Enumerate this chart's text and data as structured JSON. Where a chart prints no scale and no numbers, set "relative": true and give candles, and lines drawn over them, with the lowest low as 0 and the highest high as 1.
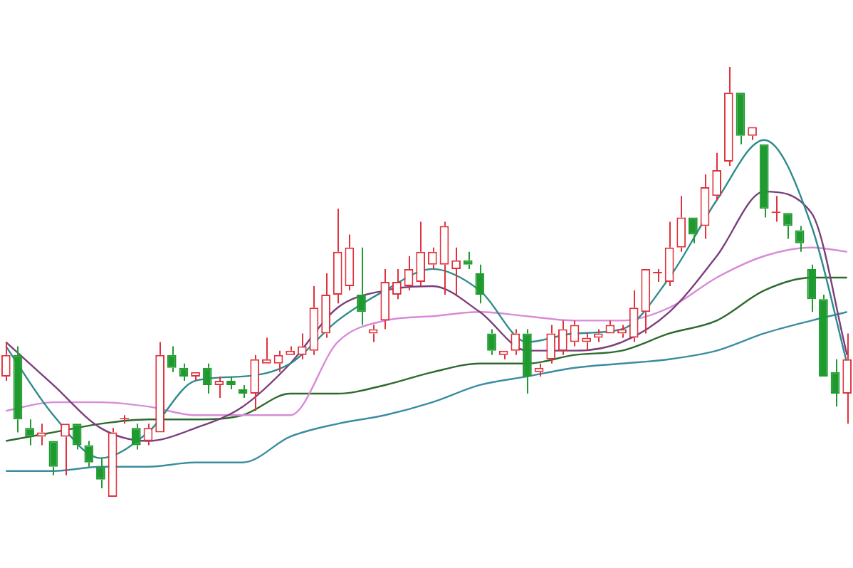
{
  "chart_data": {
    "type": "candlestick",
    "relative": true,
    "legend": false,
    "categories": [
      null,
      null,
      null,
      null,
      null,
      null,
      null,
      null,
      null,
      null,
      null,
      null,
      null,
      null,
      null,
      null,
      null,
      null,
      null,
      null,
      null,
      null,
      null,
      null,
      null,
      null,
      null,
      null,
      null,
      null,
      null,
      null,
      null,
      null,
      null,
      null,
      null,
      null,
      null,
      null,
      null,
      null,
      null,
      null,
      null,
      null,
      null,
      null,
      null,
      null,
      null,
      null,
      null,
      null,
      null,
      null,
      null,
      null,
      null,
      null,
      null,
      null,
      null,
      null,
      null,
      null,
      null,
      null,
      null,
      null,
      null,
      null
    ],
    "ohlc": [
      [
        0.28,
        0.36,
        0.27,
        0.33
      ],
      [
        0.33,
        0.35,
        0.15,
        0.18
      ],
      [
        0.16,
        0.18,
        0.12,
        0.14
      ],
      [
        0.14,
        0.17,
        0.12,
        0.15
      ],
      [
        0.13,
        0.13,
        0.05,
        0.07
      ],
      [
        0.14,
        0.17,
        0.05,
        0.17
      ],
      [
        0.17,
        0.17,
        0.11,
        0.12
      ],
      [
        0.12,
        0.13,
        0.07,
        0.08
      ],
      [
        0.07,
        0.09,
        0.02,
        0.04
      ],
      [
        0,
        0.16,
        0,
        0.15
      ],
      [
        0.18,
        0.19,
        0.17,
        0.18
      ],
      [
        0.16,
        0.17,
        0.11,
        0.12
      ],
      [
        0.13,
        0.17,
        0.12,
        0.16
      ],
      [
        0.15,
        0.36,
        0.15,
        0.33
      ],
      [
        0.33,
        0.35,
        0.29,
        0.3
      ],
      [
        0.3,
        0.31,
        0.27,
        0.28
      ],
      [
        0.28,
        0.29,
        0.27,
        0.29
      ],
      [
        0.3,
        0.31,
        0.24,
        0.26
      ],
      [
        0.26,
        0.28,
        0.23,
        0.27
      ],
      [
        0.27,
        0.28,
        0.25,
        0.26
      ],
      [
        0.25,
        0.26,
        0.23,
        0.24
      ],
      [
        0.24,
        0.33,
        0.2,
        0.32
      ],
      [
        0.31,
        0.37,
        0.31,
        0.32
      ],
      [
        0.31,
        0.34,
        0.29,
        0.33
      ],
      [
        0.33,
        0.35,
        0.33,
        0.34
      ],
      [
        0.33,
        0.38,
        0.32,
        0.35
      ],
      [
        0.34,
        0.49,
        0.33,
        0.44
      ],
      [
        0.38,
        0.52,
        0.37,
        0.47
      ],
      [
        0.47,
        0.67,
        0.45,
        0.57
      ],
      [
        0.49,
        0.61,
        0.48,
        0.58
      ],
      [
        0.47,
        0.58,
        0.4,
        0.43
      ],
      [
        0.38,
        0.4,
        0.36,
        0.39
      ],
      [
        0.41,
        0.53,
        0.39,
        0.5
      ],
      [
        0.47,
        0.53,
        0.46,
        0.5
      ],
      [
        0.49,
        0.56,
        0.48,
        0.53
      ],
      [
        0.5,
        0.64,
        0.49,
        0.57
      ],
      [
        0.54,
        0.58,
        0.53,
        0.57
      ],
      [
        0.54,
        0.64,
        0.47,
        0.63
      ],
      [
        0.53,
        0.58,
        0.47,
        0.55
      ],
      [
        0.55,
        0.57,
        0.53,
        0.54
      ],
      [
        0.52,
        0.54,
        0.45,
        0.47
      ],
      [
        0.38,
        0.39,
        0.33,
        0.34
      ],
      [
        0.33,
        0.34,
        0.32,
        0.34
      ],
      [
        0.34,
        0.39,
        0.33,
        0.38
      ],
      [
        0.38,
        0.39,
        0.24,
        0.28
      ],
      [
        0.29,
        0.31,
        0.28,
        0.3
      ],
      [
        0.32,
        0.4,
        0.31,
        0.38
      ],
      [
        0.34,
        0.41,
        0.33,
        0.39
      ],
      [
        0.36,
        0.41,
        0.35,
        0.4
      ],
      [
        0.36,
        0.38,
        0.34,
        0.37
      ],
      [
        0.37,
        0.39,
        0.36,
        0.38
      ],
      [
        0.38,
        0.41,
        0.38,
        0.4
      ],
      [
        0.38,
        0.4,
        0.37,
        0.39
      ],
      [
        0.37,
        0.48,
        0.36,
        0.44
      ],
      [
        0.43,
        0.53,
        0.38,
        0.53
      ],
      [
        0.52,
        0.53,
        0.5,
        0.52
      ],
      [
        0.5,
        0.64,
        0.49,
        0.58
      ],
      [
        0.58,
        0.7,
        0.57,
        0.65
      ],
      [
        0.65,
        0.65,
        0.59,
        0.61
      ],
      [
        0.63,
        0.75,
        0.6,
        0.72
      ],
      [
        0.7,
        0.8,
        0.69,
        0.76
      ],
      [
        0.78,
        1,
        0.77,
        0.94
      ],
      [
        0.94,
        0.94,
        0.82,
        0.84
      ],
      [
        0.84,
        0.86,
        0.83,
        0.86
      ],
      [
        0.82,
        0.82,
        0.65,
        0.67
      ],
      [
        0.66,
        0.7,
        0.64,
        0.66
      ],
      [
        0.66,
        0.66,
        0.6,
        0.63
      ],
      [
        0.62,
        0.63,
        0.57,
        0.59
      ],
      [
        0.53,
        0.54,
        0.43,
        0.46
      ],
      [
        0.46,
        0.47,
        0.28,
        0.28
      ],
      [
        0.29,
        0.32,
        0.21,
        0.24
      ],
      [
        0.24,
        0.38,
        0.17,
        0.32
      ]
    ],
    "colors": [
      "#e0323c",
      "#1f9a2f",
      "#1f9a2f",
      "#e0323c",
      "#1f9a2f",
      "#e0323c",
      "#1f9a2f",
      "#1f9a2f",
      "#1f9a2f",
      "#e0323c",
      "#e0323c",
      "#1f9a2f",
      "#e0323c",
      "#e0323c",
      "#1f9a2f",
      "#1f9a2f",
      "#e0323c",
      "#1f9a2f",
      "#e0323c",
      "#1f9a2f",
      "#1f9a2f",
      "#e0323c",
      "#e0323c",
      "#e0323c",
      "#e0323c",
      "#e0323c",
      "#e0323c",
      "#e0323c",
      "#e0323c",
      "#e0323c",
      "#1f9a2f",
      "#e0323c",
      "#e0323c",
      "#e0323c",
      "#e0323c",
      "#e0323c",
      "#e0323c",
      "#e0323c",
      "#e0323c",
      "#1f9a2f",
      "#1f9a2f",
      "#1f9a2f",
      "#e0323c",
      "#e0323c",
      "#1f9a2f",
      "#e0323c",
      "#e0323c",
      "#e0323c",
      "#e0323c",
      "#e0323c",
      "#e0323c",
      "#e0323c",
      "#e0323c",
      "#e0323c",
      "#e0323c",
      "#e0323c",
      "#e0323c",
      "#e0323c",
      "#1f9a2f",
      "#e0323c",
      "#e0323c",
      "#e0323c",
      "#1f9a2f",
      "#e0323c",
      "#1f9a2f",
      "#e0323c",
      "#1f9a2f",
      "#1f9a2f",
      "#1f9a2f",
      "#1f9a2f",
      "#1f9a2f",
      "#e0323c"
    ],
    "series": [
      {
        "type": "line",
        "color": "#2e8b8b",
        "values": [
          0.35,
          null,
          null,
          null,
          0.19,
          null,
          null,
          null,
          0.09,
          null,
          null,
          null,
          0.15,
          null,
          null,
          null,
          0.27,
          null,
          null,
          null,
          0.28,
          null,
          null,
          null,
          0.31,
          null,
          null,
          null,
          0.41,
          null,
          null,
          null,
          0.48,
          null,
          null,
          null,
          0.53,
          null,
          null,
          null,
          0.48,
          null,
          null,
          null,
          0.36,
          null,
          null,
          null,
          0.38,
          null,
          null,
          null,
          0.39,
          null,
          null,
          null,
          0.51,
          null,
          null,
          null,
          0.69,
          null,
          null,
          null,
          0.83,
          null,
          null,
          null,
          0.63,
          null,
          null,
          0.31
        ]
      },
      {
        "type": "line",
        "color": "#7b3f7b",
        "values": [
          0.36,
          null,
          null,
          null,
          0.26,
          null,
          null,
          null,
          0.16,
          null,
          null,
          null,
          0.13,
          null,
          null,
          null,
          0.16,
          null,
          null,
          null,
          0.21,
          null,
          null,
          null,
          0.31,
          null,
          null,
          null,
          0.44,
          null,
          null,
          null,
          0.48,
          null,
          null,
          null,
          0.49,
          null,
          null,
          null,
          0.43,
          null,
          null,
          null,
          0.34,
          null,
          null,
          null,
          0.34,
          null,
          null,
          null,
          0.36,
          null,
          null,
          null,
          0.43,
          null,
          null,
          null,
          0.56,
          null,
          null,
          null,
          0.71,
          null,
          null,
          null,
          0.66,
          null,
          null,
          0.33
        ]
      },
      {
        "type": "line",
        "color": "#d88bd8",
        "values": [
          0.2,
          null,
          null,
          null,
          0.22,
          null,
          null,
          null,
          0.22,
          null,
          null,
          null,
          0.21,
          null,
          null,
          null,
          0.19,
          null,
          null,
          null,
          0.19,
          null,
          null,
          null,
          0.19,
          null,
          null,
          null,
          0.36,
          null,
          null,
          null,
          0.41,
          null,
          null,
          null,
          0.42,
          null,
          null,
          null,
          0.43,
          null,
          null,
          null,
          0.42,
          null,
          null,
          null,
          0.41,
          null,
          null,
          null,
          0.41,
          null,
          null,
          null,
          0.44,
          null,
          null,
          null,
          0.51,
          null,
          null,
          null,
          0.56,
          null,
          null,
          null,
          0.58,
          null,
          null,
          0.57
        ]
      },
      {
        "type": "line",
        "color": "#2d6a2d",
        "values": [
          0.13,
          null,
          null,
          null,
          0.15,
          null,
          null,
          null,
          0.17,
          null,
          null,
          null,
          0.18,
          null,
          null,
          null,
          0.18,
          null,
          null,
          null,
          0.19,
          null,
          null,
          null,
          0.24,
          null,
          null,
          null,
          0.24,
          null,
          null,
          null,
          0.26,
          null,
          null,
          null,
          0.29,
          null,
          null,
          null,
          0.31,
          null,
          null,
          null,
          0.31,
          null,
          null,
          null,
          0.33,
          null,
          null,
          null,
          0.34,
          null,
          null,
          null,
          0.38,
          null,
          null,
          null,
          0.41,
          null,
          null,
          null,
          0.48,
          null,
          null,
          null,
          0.51,
          null,
          null,
          0.51
        ]
      },
      {
        "type": "line",
        "color": "#3c8ca0",
        "values": [
          0.06,
          null,
          null,
          null,
          0.06,
          null,
          null,
          null,
          0.07,
          null,
          null,
          null,
          0.07,
          null,
          null,
          null,
          0.08,
          null,
          null,
          null,
          0.08,
          null,
          null,
          null,
          0.14,
          null,
          null,
          null,
          0.17,
          null,
          null,
          null,
          0.19,
          null,
          null,
          null,
          0.22,
          null,
          null,
          null,
          0.26,
          null,
          null,
          null,
          0.28,
          null,
          null,
          null,
          0.3,
          null,
          null,
          null,
          0.31,
          null,
          null,
          null,
          0.32,
          null,
          null,
          null,
          0.34,
          null,
          null,
          null,
          0.38,
          null,
          null,
          null,
          0.41,
          null,
          null,
          0.43
        ]
      }
    ]
  }
}
